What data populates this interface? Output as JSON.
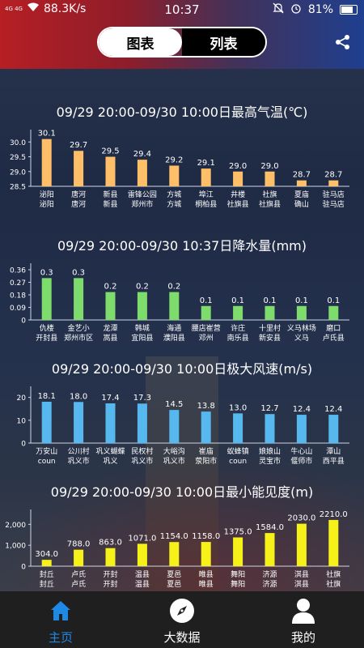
{
  "status_bar": {
    "network": "4G 4G",
    "speed": "88.3K/s",
    "time": "10:37",
    "battery": "81%",
    "battery_level": 0.81
  },
  "toggle": {
    "chart_label": "图表",
    "list_label": "列表"
  },
  "icons": {
    "share": "share-icon",
    "home": "home-icon",
    "compass": "compass-icon",
    "user": "user-icon",
    "flag": "flag-icon"
  },
  "colors": {
    "temp": "#ffbf69",
    "rain": "#7ddc6b",
    "wind": "#56b8ee",
    "vis": "#f7f11a",
    "nav_active": "#1e88e5"
  },
  "nav": {
    "home": "主页",
    "bigdata": "大数据",
    "mine": "我的"
  },
  "chart_data": [
    {
      "type": "bar",
      "title": "09/29 20:00-09/30 10:00日最高气温(℃)",
      "ylim": [
        28.5,
        30.2
      ],
      "yticks": [
        "30.0",
        "29.5",
        "29.0",
        "28.5"
      ],
      "ytick_values": [
        30.0,
        29.5,
        29.0,
        28.5
      ],
      "categories": [
        [
          "泌阳",
          "泌阳"
        ],
        [
          "唐河",
          "唐河"
        ],
        [
          "新县",
          "新县"
        ],
        [
          "雷锋公园",
          "郑州市"
        ],
        [
          "方城",
          "方城"
        ],
        [
          "埠江",
          "桐柏县"
        ],
        [
          "井楼",
          "社旗县"
        ],
        [
          "社旗",
          "社旗县"
        ],
        [
          "夏庙",
          "确山"
        ],
        [
          "驻马店",
          "驻马店"
        ]
      ],
      "values": [
        30.1,
        29.7,
        29.5,
        29.4,
        29.2,
        29.1,
        29.0,
        29.0,
        28.7,
        28.7
      ],
      "labels": [
        "30.1",
        "29.7",
        "29.5",
        "29.4",
        "29.2",
        "29.1",
        "29.0",
        "29.0",
        "28.7",
        "28.7"
      ]
    },
    {
      "type": "bar",
      "title": "09/29 20:00-09/30 10:37日降水量(mm)",
      "ylim": [
        0,
        0.36
      ],
      "yticks": [
        "0.36",
        "0.27",
        "0.18",
        "0.09",
        "0"
      ],
      "ytick_values": [
        0.36,
        0.27,
        0.18,
        0.09,
        0
      ],
      "categories": [
        [
          "仇楼",
          "开封县"
        ],
        [
          "金艺小",
          "郑州市区"
        ],
        [
          "龙潭",
          "嵩县"
        ],
        [
          "韩城",
          "宜阳县"
        ],
        [
          "海通",
          "濮阳县"
        ],
        [
          "腰店崔营",
          "邓州"
        ],
        [
          "许庄",
          "南乐县"
        ],
        [
          "十里村",
          "新安县"
        ],
        [
          "义马林场",
          "义马"
        ],
        [
          "磨口",
          "卢氏县"
        ]
      ],
      "values": [
        0.3,
        0.3,
        0.2,
        0.2,
        0.2,
        0.1,
        0.1,
        0.1,
        0.1,
        0.1
      ],
      "labels": [
        "0.3",
        "0.3",
        "0.2",
        "0.2",
        "0.2",
        "0.1",
        "0.1",
        "0.1",
        "0.1",
        "0.1"
      ]
    },
    {
      "type": "bar",
      "title": "09/29 20:00-09/30 10:00日极大风速(m/s)",
      "ylim": [
        0,
        22
      ],
      "yticks": [
        "20",
        "10",
        "0"
      ],
      "ytick_values": [
        20,
        10,
        0
      ],
      "categories": [
        [
          "万安山",
          "coun"
        ],
        [
          "公川村",
          "巩义市"
        ],
        [
          "巩义蝴蝶",
          "巩义"
        ],
        [
          "民权村",
          "巩义市"
        ],
        [
          "大峪沟",
          "巩义市"
        ],
        [
          "崔庙",
          "荥阳市"
        ],
        [
          "蚁蜂镇",
          "coun"
        ],
        [
          "娘娘山",
          "灵宝市"
        ],
        [
          "牛心山",
          "偃师市"
        ],
        [
          "潭山",
          "西平县"
        ]
      ],
      "values": [
        18.1,
        18.0,
        17.4,
        17.3,
        14.5,
        13.8,
        13.0,
        12.7,
        12.4,
        12.4
      ],
      "labels": [
        "18.1",
        "18.0",
        "17.4",
        "17.3",
        "14.5",
        "13.8",
        "13.0",
        "12.7",
        "12.4",
        "12.4"
      ]
    },
    {
      "type": "bar",
      "title": "09/29 20:00-09/30 10:00日最小能见度(m)",
      "ylim": [
        0,
        2400
      ],
      "yticks": [
        "2,000",
        "1,000",
        "0"
      ],
      "ytick_values": [
        2000,
        1000,
        0
      ],
      "categories": [
        [
          "封丘",
          "封丘"
        ],
        [
          "卢氏",
          "卢氏"
        ],
        [
          "开封",
          "开封"
        ],
        [
          "温县",
          "温县"
        ],
        [
          "夏邑",
          "夏邑"
        ],
        [
          "睢县",
          "睢县"
        ],
        [
          "舞阳",
          "舞阳"
        ],
        [
          "济源",
          "济源"
        ],
        [
          "淇县",
          "淇县"
        ],
        [
          "社旗",
          "社旗"
        ]
      ],
      "values": [
        304.0,
        788.0,
        863.0,
        1071.0,
        1154.0,
        1158.0,
        1375.0,
        1584.0,
        2030.0,
        2210.0
      ],
      "labels": [
        "304.0",
        "788.0",
        "863.0",
        "1071.0",
        "1154.0",
        "1158.0",
        "1375.0",
        "1584.0",
        "2030.0",
        "2210.0"
      ]
    }
  ]
}
